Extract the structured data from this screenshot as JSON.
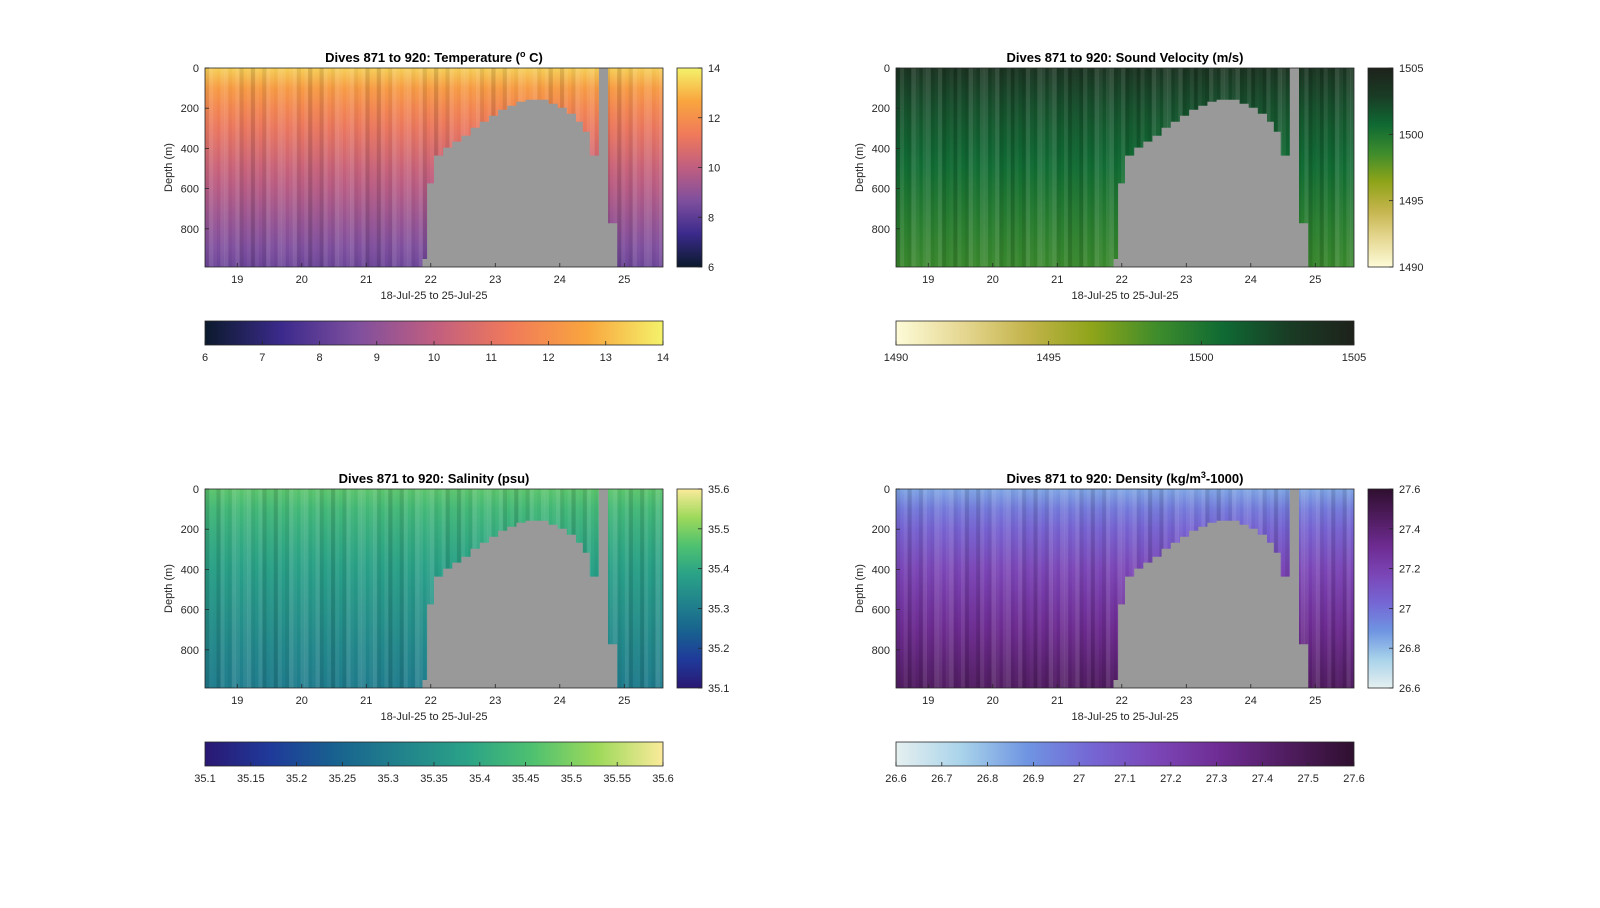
{
  "chart_data": [
    {
      "type": "heatmap",
      "title_main": "Dives 871 to 920: Temperature (",
      "title_sup": "o",
      "title_end": " C)",
      "xlabel": "18-Jul-25 to 25-Jul-25",
      "ylabel": "Depth (m)",
      "xticks": [
        "19",
        "20",
        "21",
        "22",
        "23",
        "24",
        "25"
      ],
      "xlim": [
        18.5,
        25.6
      ],
      "ylim": [
        0,
        990
      ],
      "yticks": [
        0,
        200,
        400,
        600,
        800
      ],
      "colorbar_side_ticks": [
        "14",
        "12",
        "10",
        "8",
        "6"
      ],
      "colorbar_bottom_ticks": [
        "6",
        "7",
        "8",
        "9",
        "10",
        "11",
        "12",
        "13",
        "14"
      ],
      "clim": [
        6,
        14
      ],
      "colormap": [
        "#0b1a2c",
        "#3b2a8c",
        "#7f4f9e",
        "#c05e80",
        "#f07a5a",
        "#f9a53e",
        "#f4f26a"
      ],
      "surface_value": 13.4,
      "bottom_value": 8.3,
      "no_data_color": "#999999"
    },
    {
      "type": "heatmap",
      "title_main": "Dives 871 to 920: Sound Velocity (m/s)",
      "title_sup": "",
      "title_end": "",
      "xlabel": "18-Jul-25 to 25-Jul-25",
      "ylabel": "Depth (m)",
      "xticks": [
        "19",
        "20",
        "21",
        "22",
        "23",
        "24",
        "25"
      ],
      "xlim": [
        18.5,
        25.6
      ],
      "ylim": [
        0,
        990
      ],
      "yticks": [
        0,
        200,
        400,
        600,
        800
      ],
      "colorbar_side_ticks": [
        "1505",
        "1500",
        "1495",
        "1490"
      ],
      "colorbar_bottom_ticks": [
        "1490",
        "1495",
        "1500",
        "1505"
      ],
      "clim": [
        1490,
        1505
      ],
      "colormap": [
        "#fdfbd8",
        "#e6d893",
        "#c4b44c",
        "#8ea419",
        "#3e8c2c",
        "#0f6a33",
        "#193c25",
        "#1e221b"
      ],
      "surface_value": 1503.5,
      "bottom_value": 1498.8,
      "no_data_color": "#999999"
    },
    {
      "type": "heatmap",
      "title_main": "Dives 871 to 920: Salinity (psu)",
      "title_sup": "",
      "title_end": "",
      "xlabel": "18-Jul-25 to 25-Jul-25",
      "ylabel": "Depth (m)",
      "xticks": [
        "19",
        "20",
        "21",
        "22",
        "23",
        "24",
        "25"
      ],
      "xlim": [
        18.5,
        25.6
      ],
      "ylim": [
        0,
        990
      ],
      "yticks": [
        0,
        200,
        400,
        600,
        800
      ],
      "colorbar_side_ticks": [
        "35.6",
        "35.5",
        "35.4",
        "35.3",
        "35.2",
        "35.1"
      ],
      "colorbar_bottom_ticks": [
        "35.1",
        "35.15",
        "35.2",
        "35.25",
        "35.3",
        "35.35",
        "35.4",
        "35.45",
        "35.5",
        "35.55",
        "35.6"
      ],
      "clim": [
        35.1,
        35.6
      ],
      "colormap": [
        "#2a1873",
        "#1f3a9a",
        "#18628f",
        "#21838c",
        "#2aa287",
        "#4ec170",
        "#9dd95a",
        "#fbeb9b"
      ],
      "surface_value": 35.47,
      "bottom_value": 35.3,
      "no_data_color": "#999999"
    },
    {
      "type": "heatmap",
      "title_main": "Dives 871 to 920: Density (kg/m",
      "title_sup": "3",
      "title_end": "-1000)",
      "xlabel": "18-Jul-25 to 25-Jul-25",
      "ylabel": "Depth (m)",
      "xticks": [
        "19",
        "20",
        "21",
        "22",
        "23",
        "24",
        "25"
      ],
      "xlim": [
        18.5,
        25.6
      ],
      "ylim": [
        0,
        990
      ],
      "yticks": [
        0,
        200,
        400,
        600,
        800
      ],
      "colorbar_side_ticks": [
        "27.6",
        "27.4",
        "27.2",
        "27",
        "26.8",
        "26.6"
      ],
      "colorbar_bottom_ticks": [
        "26.6",
        "26.7",
        "26.8",
        "26.9",
        "27",
        "27.1",
        "27.2",
        "27.3",
        "27.4",
        "27.5",
        "27.6"
      ],
      "clim": [
        26.6,
        27.6
      ],
      "colormap": [
        "#e6f0f0",
        "#a9d3ea",
        "#6f95e2",
        "#7566d4",
        "#7b45b6",
        "#6d2b91",
        "#4f1c5e",
        "#2f0f2f"
      ],
      "surface_value": 26.85,
      "bottom_value": 27.45,
      "no_data_color": "#999999"
    }
  ]
}
